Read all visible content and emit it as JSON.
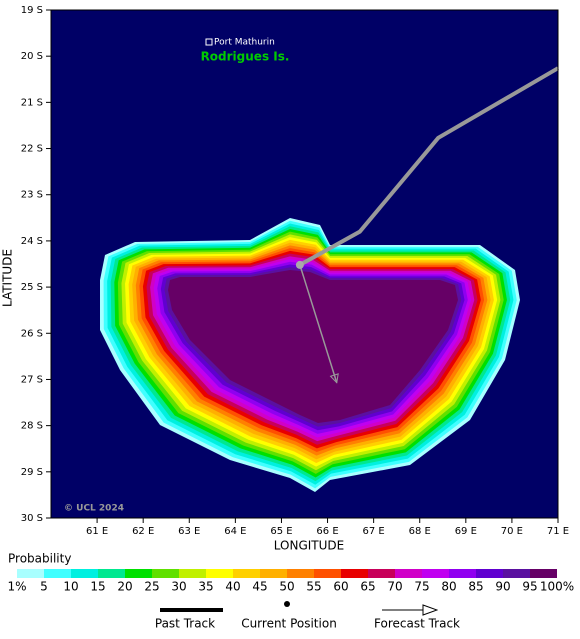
{
  "chart_data": {
    "type": "map",
    "xlabel": "LONGITUDE",
    "ylabel": "LATITUDE",
    "xlim": [
      60,
      71
    ],
    "ylim": [
      -19,
      -30
    ],
    "xticks": [
      {
        "value": 61,
        "label": "61 E"
      },
      {
        "value": 62,
        "label": "62 E"
      },
      {
        "value": 63,
        "label": "63 E"
      },
      {
        "value": 64,
        "label": "64 E"
      },
      {
        "value": 65,
        "label": "65 E"
      },
      {
        "value": 66,
        "label": "66 E"
      },
      {
        "value": 67,
        "label": "67 E"
      },
      {
        "value": 68,
        "label": "68 E"
      },
      {
        "value": 69,
        "label": "69 E"
      },
      {
        "value": 70,
        "label": "70 E"
      },
      {
        "value": 71,
        "label": "71 E"
      }
    ],
    "yticks": [
      {
        "value": -19,
        "label": "19 S"
      },
      {
        "value": -20,
        "label": "20 S"
      },
      {
        "value": -21,
        "label": "21 S"
      },
      {
        "value": -22,
        "label": "22 S"
      },
      {
        "value": -23,
        "label": "23 S"
      },
      {
        "value": -24,
        "label": "24 S"
      },
      {
        "value": -25,
        "label": "25 S"
      },
      {
        "value": -26,
        "label": "26 S"
      },
      {
        "value": -27,
        "label": "27 S"
      },
      {
        "value": -28,
        "label": "28 S"
      },
      {
        "value": -29,
        "label": "29 S"
      },
      {
        "value": -30,
        "label": "30 S"
      }
    ],
    "background": "#000066",
    "annotations": [
      "Port Mathurin",
      "Rodrigues Is."
    ],
    "credit": "© UCL 2024",
    "probability": {
      "title": "Probability",
      "levels": [
        {
          "value": 1,
          "label": "1%"
        },
        5,
        10,
        15,
        20,
        25,
        30,
        35,
        40,
        45,
        50,
        55,
        60,
        65,
        70,
        75,
        80,
        85,
        90,
        95,
        {
          "value": 100,
          "label": "100%"
        }
      ],
      "colors": [
        "#a8ffff",
        "#40ffff",
        "#00f0e0",
        "#00e890",
        "#00e000",
        "#60e000",
        "#c0f000",
        "#ffff00",
        "#ffd000",
        "#ffb000",
        "#ff8000",
        "#ff5000",
        "#e80000",
        "#c8005a",
        "#d000c8",
        "#c000f0",
        "#9000f0",
        "#6000d0",
        "#5a10a0",
        "#660066"
      ]
    },
    "past_track": {
      "name": "Past Track",
      "color": "#999999",
      "lon": [
        71.0,
        68.4,
        66.7,
        65.4
      ],
      "lat": [
        -20.26,
        -21.77,
        -23.8,
        -24.52
      ]
    },
    "current_position": {
      "name": "Current Position",
      "lon": 65.4,
      "lat": -24.52
    },
    "forecast_track": {
      "name": "Forecast Track",
      "color": "#999999",
      "lon": [
        65.4,
        66.2
      ],
      "lat": [
        -24.52,
        -27.07
      ]
    }
  }
}
